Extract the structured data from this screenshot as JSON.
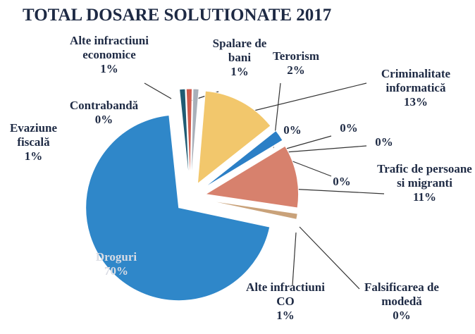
{
  "chart_data": {
    "type": "pie",
    "title": "TOTAL DOSARE SOLUTIONATE 2017",
    "categories": [
      "Evaziune fiscală",
      "Contrabandă",
      "Alte infractiuni economice",
      "Spalare de bani",
      "Criminalitate informatică",
      "Terorism",
      null,
      null,
      null,
      null,
      "Trafic de persoane si migranti",
      "Alte infractiuni CO",
      "Falsificarea de modedă",
      "Droguri"
    ],
    "values": [
      1,
      0,
      1,
      1,
      13,
      2,
      0,
      0,
      0,
      0,
      11,
      1,
      0,
      70
    ],
    "value_labels": [
      "1%",
      "0%",
      "1%",
      "1%",
      "13%",
      "2%",
      "0%",
      "0%",
      "0%",
      "0%",
      "11%",
      "1%",
      "0%",
      "70%"
    ],
    "colors": [
      "#1f5b73",
      "#6fa8a8",
      "#cf5a4c",
      "#a9b0b9",
      "#f2c76c",
      "#2b7fc6",
      "#555555",
      "#555555",
      "#555555",
      "#555555",
      "#d7816d",
      "#c9a27a",
      "#88aa88",
      "#2f87c9"
    ]
  }
}
